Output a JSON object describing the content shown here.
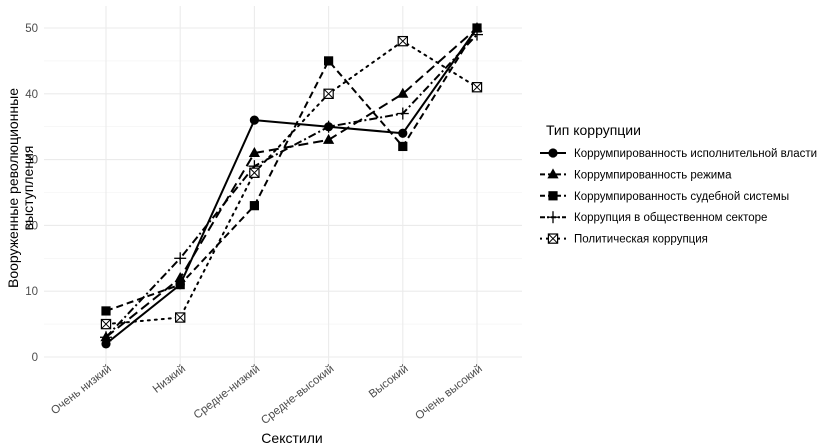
{
  "chart_data": {
    "type": "line",
    "title": "",
    "xlabel": "Секстили",
    "ylabel_lines": [
      "Вооруженные революционные",
      "выступления"
    ],
    "ylim": [
      0,
      52
    ],
    "yticks": [
      0,
      10,
      20,
      30,
      40,
      50
    ],
    "categories": [
      "Очень низкий",
      "Низкий",
      "Средне-низкий",
      "Средне-высокий",
      "Высокий",
      "Очень высокий"
    ],
    "grid": true,
    "legend_position": "right",
    "legend_title": "Тип коррупции",
    "series": [
      {
        "name": "Коррумпированность исполнительной власти",
        "marker": "circle",
        "dash": "solid",
        "values": [
          2,
          11,
          36,
          35,
          34,
          50
        ]
      },
      {
        "name": "Коррумпированность режима",
        "marker": "triangle",
        "dash": "dashed-long",
        "values": [
          3,
          12,
          31,
          33,
          40,
          50
        ]
      },
      {
        "name": "Коррумпированность судебной системы",
        "marker": "square",
        "dash": "dashed",
        "values": [
          7,
          11,
          23,
          45,
          32,
          50
        ]
      },
      {
        "name": "Коррупция в общественном секторе",
        "marker": "plus",
        "dash": "dashdot",
        "values": [
          3,
          15,
          29,
          35,
          37,
          49
        ]
      },
      {
        "name": "Политическая коррупция",
        "marker": "boxed-x",
        "dash": "dotted",
        "values": [
          5,
          6,
          28,
          40,
          48,
          41
        ]
      }
    ]
  }
}
